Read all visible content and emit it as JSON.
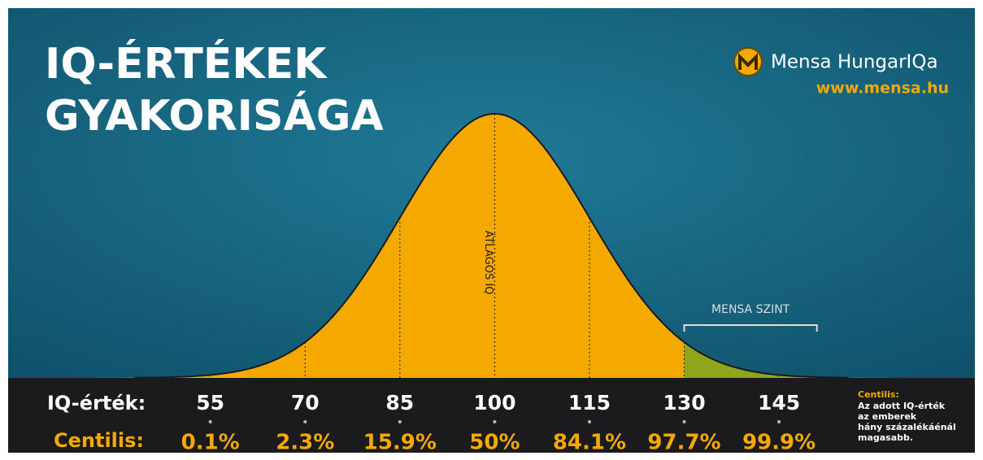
{
  "chart_data": {
    "type": "bell",
    "title": [
      "IQ-ÉRTÉKEK",
      "GYAKORISÁGA"
    ],
    "brand": "Mensa HungarIQa",
    "url": "www.mensa.hu",
    "x_label": "IQ-érték:",
    "value_label": "Centilis:",
    "x": [
      55,
      70,
      85,
      100,
      115,
      130,
      145
    ],
    "values": [
      0.1,
      2.3,
      15.9,
      50,
      84.1,
      97.7,
      99.9
    ],
    "value_labels": [
      "0.1%",
      "2.3%",
      "15.9%",
      "50%",
      "84.1%",
      "97.7%",
      "99.9%"
    ],
    "xlim": [
      23,
      176
    ],
    "colors": {
      "curve": "#f5a800",
      "mensa": "#8fa61c"
    },
    "annotations": [
      {
        "text": "ÁTLAGOS IQ",
        "x": 100
      },
      {
        "text": "MENSA SZINT",
        "x": [
          130,
          151
        ]
      }
    ],
    "note": {
      "title": "Centilis:",
      "lines": [
        "Az adott IQ-érték",
        "az emberek",
        "hány százalékáénál",
        "magasabb."
      ]
    }
  }
}
